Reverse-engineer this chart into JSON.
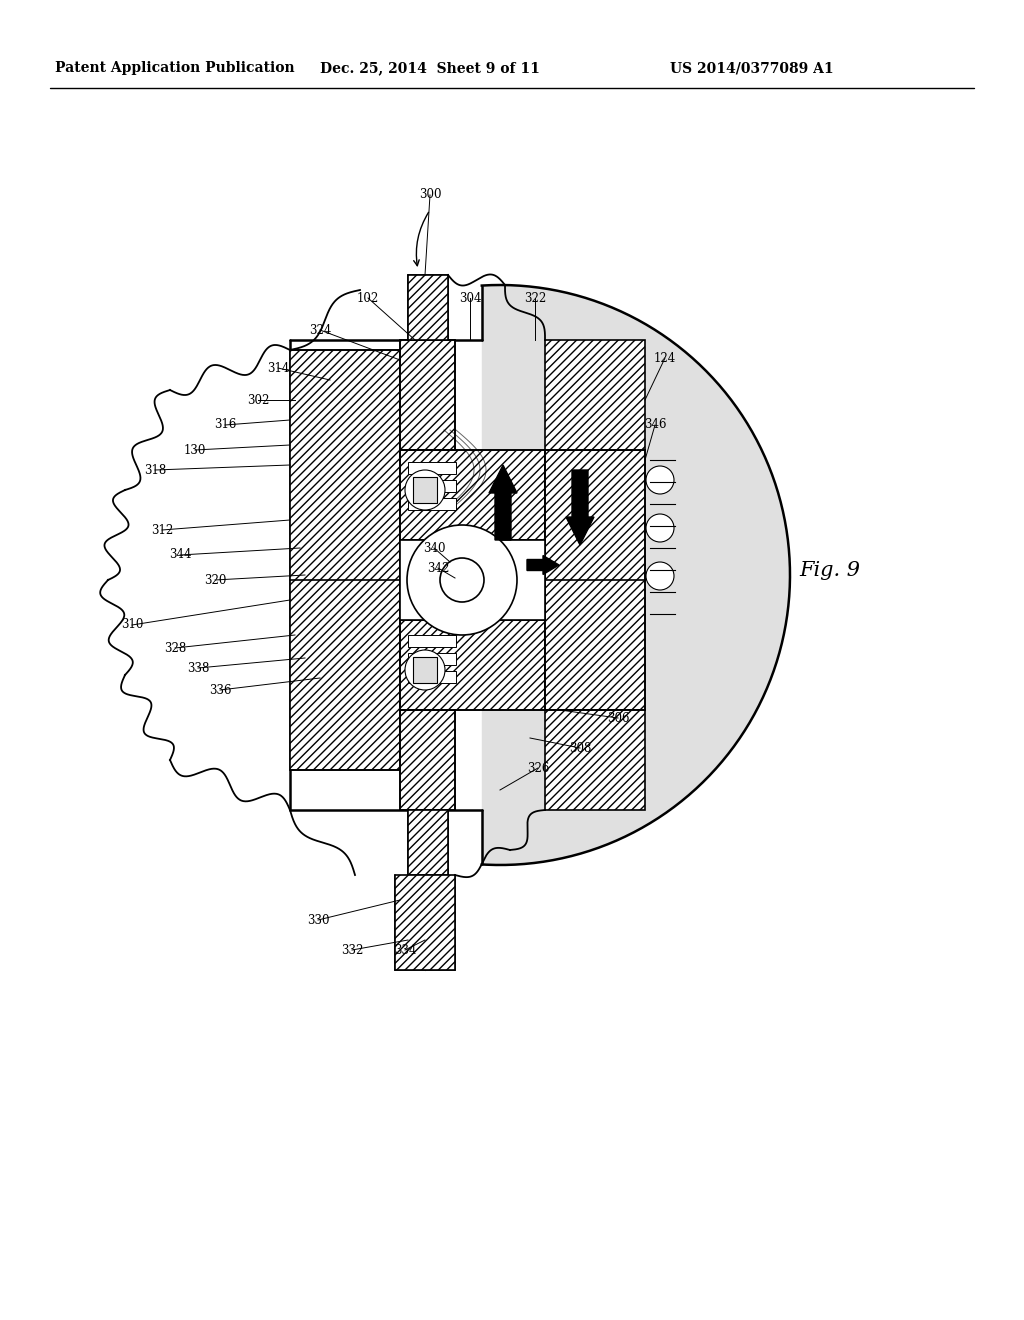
{
  "title_left": "Patent Application Publication",
  "title_mid": "Dec. 25, 2014  Sheet 9 of 11",
  "title_right": "US 2014/0377089 A1",
  "fig_label": "Fig. 9",
  "bg_color": "#ffffff",
  "line_color": "#000000"
}
